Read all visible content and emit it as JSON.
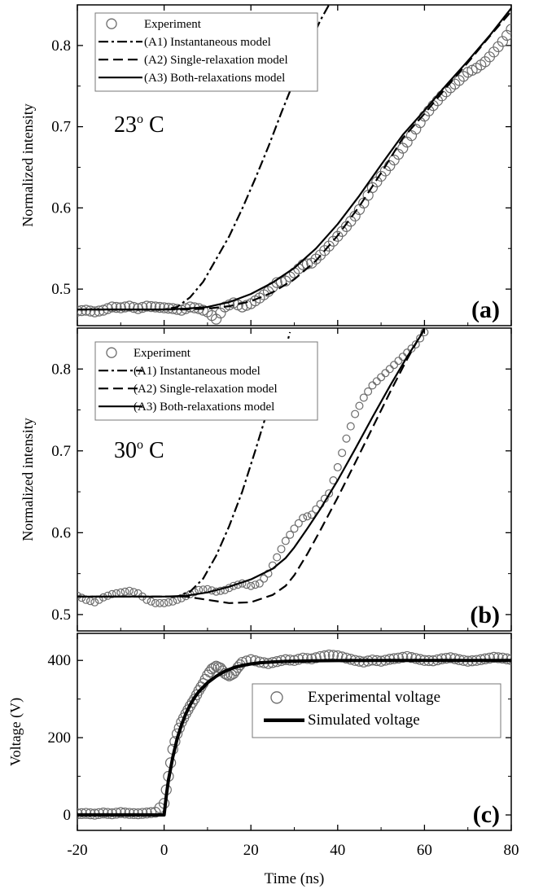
{
  "chart_data": [
    {
      "type": "line",
      "panel_label": "(a)",
      "annotation": "23",
      "annotation_sup": "o",
      "annotation_unit": " C",
      "ylabel": "Normalized intensity",
      "xlim": [
        -20,
        80
      ],
      "ylim": [
        0.455,
        0.85
      ],
      "yticks": [
        0.5,
        0.6,
        0.7,
        0.8
      ],
      "ytick_labels": [
        "0.5",
        "0.6",
        "0.7",
        "0.8"
      ],
      "legend_position": "top-left",
      "series": [
        {
          "name": "Experiment",
          "style": "markers",
          "x": [
            -20,
            -18,
            -16,
            -14,
            -12,
            -10,
            -8,
            -6,
            -4,
            -2,
            0,
            2,
            4,
            6,
            8,
            10,
            12,
            14,
            16,
            18,
            20,
            22,
            24,
            26,
            28,
            30,
            32,
            34,
            36,
            38,
            40,
            42,
            44,
            46,
            48,
            50,
            52,
            54,
            56,
            58,
            60,
            62,
            64,
            66,
            68,
            70,
            72,
            74,
            76,
            78,
            80
          ],
          "y": [
            0.473,
            0.474,
            0.472,
            0.474,
            0.478,
            0.477,
            0.479,
            0.476,
            0.479,
            0.478,
            0.477,
            0.476,
            0.474,
            0.478,
            0.476,
            0.472,
            0.463,
            0.478,
            0.483,
            0.478,
            0.482,
            0.489,
            0.497,
            0.508,
            0.51,
            0.52,
            0.53,
            0.532,
            0.542,
            0.553,
            0.565,
            0.577,
            0.59,
            0.606,
            0.625,
            0.639,
            0.652,
            0.666,
            0.681,
            0.697,
            0.713,
            0.726,
            0.738,
            0.748,
            0.757,
            0.767,
            0.772,
            0.78,
            0.792,
            0.805,
            0.82
          ]
        },
        {
          "name": "(A1) Instantaneous model",
          "style": "dashdot",
          "x": [
            -20,
            0,
            3,
            6,
            9,
            12,
            15,
            18,
            21,
            24,
            27,
            30,
            33,
            36,
            38
          ],
          "y": [
            0.475,
            0.475,
            0.478,
            0.49,
            0.509,
            0.537,
            0.565,
            0.599,
            0.636,
            0.675,
            0.717,
            0.757,
            0.796,
            0.831,
            0.85
          ]
        },
        {
          "name": "(A2) Single-relaxation model",
          "style": "dashed",
          "x": [
            -20,
            0,
            5,
            10,
            15,
            20,
            25,
            30,
            35,
            40,
            45,
            50,
            55,
            60,
            65,
            70,
            75,
            80
          ],
          "y": [
            0.475,
            0.475,
            0.475,
            0.476,
            0.479,
            0.485,
            0.496,
            0.512,
            0.535,
            0.566,
            0.602,
            0.643,
            0.686,
            0.716,
            0.748,
            0.779,
            0.811,
            0.842
          ]
        },
        {
          "name": "(A3) Both-relaxations model",
          "style": "solid",
          "x": [
            -20,
            0,
            5,
            10,
            15,
            20,
            25,
            30,
            35,
            40,
            45,
            50,
            55,
            60,
            65,
            70,
            75,
            80
          ],
          "y": [
            0.475,
            0.475,
            0.476,
            0.478,
            0.484,
            0.494,
            0.508,
            0.526,
            0.55,
            0.58,
            0.615,
            0.653,
            0.69,
            0.72,
            0.751,
            0.781,
            0.812,
            0.846
          ]
        }
      ]
    },
    {
      "type": "line",
      "panel_label": "(b)",
      "annotation": "30",
      "annotation_sup": "o",
      "annotation_unit": " C",
      "ylabel": "Normalized intensity",
      "xlim": [
        -20,
        80
      ],
      "ylim": [
        0.48,
        0.85
      ],
      "yticks": [
        0.5,
        0.6,
        0.7,
        0.8
      ],
      "ytick_labels": [
        "0.5",
        "0.6",
        "0.7",
        "0.8"
      ],
      "legend_position": "top-left",
      "series": [
        {
          "name": "Experiment",
          "style": "markers",
          "x": [
            -20,
            -18,
            -16,
            -14,
            -12,
            -10,
            -8,
            -6,
            -4,
            -2,
            0,
            2,
            4,
            6,
            8,
            10,
            12,
            14,
            16,
            18,
            20,
            22,
            24,
            26,
            28,
            30,
            32,
            34,
            36,
            38,
            40,
            42,
            44,
            46,
            48,
            50,
            52,
            54,
            56,
            58,
            60
          ],
          "y": [
            0.523,
            0.518,
            0.515,
            0.521,
            0.525,
            0.527,
            0.529,
            0.526,
            0.518,
            0.514,
            0.514,
            0.516,
            0.52,
            0.525,
            0.53,
            0.531,
            0.528,
            0.53,
            0.535,
            0.538,
            0.535,
            0.538,
            0.55,
            0.57,
            0.59,
            0.605,
            0.618,
            0.622,
            0.635,
            0.648,
            0.68,
            0.715,
            0.745,
            0.765,
            0.78,
            0.79,
            0.8,
            0.81,
            0.82,
            0.83,
            0.845
          ]
        },
        {
          "name": "(A1) Instantaneous model",
          "style": "dashdot",
          "x": [
            -20,
            0,
            3,
            6,
            9,
            12,
            15,
            18,
            21,
            24,
            26,
            28,
            29
          ],
          "y": [
            0.522,
            0.522,
            0.522,
            0.528,
            0.544,
            0.572,
            0.608,
            0.65,
            0.7,
            0.752,
            0.788,
            0.825,
            0.845
          ]
        },
        {
          "name": "(A2) Single-relaxation model",
          "style": "dashed",
          "x": [
            -20,
            0,
            5,
            10,
            15,
            20,
            25,
            28,
            30,
            33,
            36,
            40,
            44,
            48,
            52,
            56,
            60
          ],
          "y": [
            0.522,
            0.522,
            0.522,
            0.518,
            0.514,
            0.515,
            0.524,
            0.535,
            0.548,
            0.574,
            0.603,
            0.643,
            0.685,
            0.728,
            0.771,
            0.812,
            0.85
          ]
        },
        {
          "name": "(A3) Both-relaxations model",
          "style": "solid",
          "x": [
            -20,
            0,
            5,
            10,
            15,
            20,
            25,
            28,
            30,
            33,
            36,
            40,
            44,
            48,
            52,
            56,
            60
          ],
          "y": [
            0.522,
            0.522,
            0.523,
            0.527,
            0.534,
            0.543,
            0.556,
            0.569,
            0.582,
            0.605,
            0.629,
            0.664,
            0.702,
            0.741,
            0.779,
            0.815,
            0.848
          ]
        }
      ]
    },
    {
      "type": "line",
      "panel_label": "(c)",
      "ylabel": "Voltage (V)",
      "xlabel": "Time (ns)",
      "xlim": [
        -20,
        80
      ],
      "ylim": [
        -40,
        470
      ],
      "yticks": [
        0,
        200,
        400
      ],
      "ytick_labels": [
        "0",
        "200",
        "400"
      ],
      "xticks": [
        -20,
        0,
        20,
        40,
        60,
        80
      ],
      "xtick_labels": [
        "-20",
        "0",
        "20",
        "40",
        "60",
        "80"
      ],
      "legend_position": "center-right",
      "series": [
        {
          "name": "Experimental voltage",
          "style": "markers",
          "x": [
            -20,
            -18,
            -16,
            -14,
            -12,
            -10,
            -8,
            -6,
            -4,
            -2,
            0,
            1,
            2,
            3,
            4,
            5,
            6,
            7,
            8,
            9,
            10,
            11,
            12,
            13,
            14,
            15,
            16,
            17,
            18,
            20,
            22,
            24,
            26,
            28,
            30,
            32,
            34,
            36,
            38,
            40,
            42,
            44,
            46,
            48,
            50,
            52,
            54,
            56,
            58,
            60,
            62,
            64,
            66,
            68,
            70,
            72,
            74,
            76,
            78,
            80
          ],
          "y": [
            3,
            4,
            2,
            5,
            3,
            6,
            4,
            3,
            5,
            7,
            30,
            100,
            170,
            210,
            240,
            262,
            282,
            300,
            322,
            340,
            362,
            378,
            385,
            380,
            366,
            360,
            366,
            382,
            395,
            402,
            396,
            392,
            397,
            402,
            400,
            406,
            404,
            410,
            414,
            412,
            406,
            400,
            396,
            401,
            398,
            403,
            406,
            410,
            405,
            400,
            399,
            404,
            407,
            402,
            398,
            400,
            404,
            408,
            406,
            402
          ]
        },
        {
          "name": "Simulated voltage",
          "style": "solid-thick",
          "x": [
            -20,
            0,
            0.5,
            1,
            2,
            3,
            4,
            5,
            6,
            7,
            8,
            10,
            12,
            14,
            16,
            18,
            20,
            22,
            25,
            28,
            30,
            35,
            40,
            50,
            60,
            70,
            80
          ],
          "y": [
            0,
            0,
            50,
            90,
            150,
            197,
            233,
            262,
            285,
            304,
            319,
            342,
            359,
            372,
            381,
            387,
            391,
            394,
            396,
            397.5,
            398.2,
            399.2,
            399.6,
            399.9,
            400,
            400,
            400
          ]
        }
      ]
    }
  ]
}
